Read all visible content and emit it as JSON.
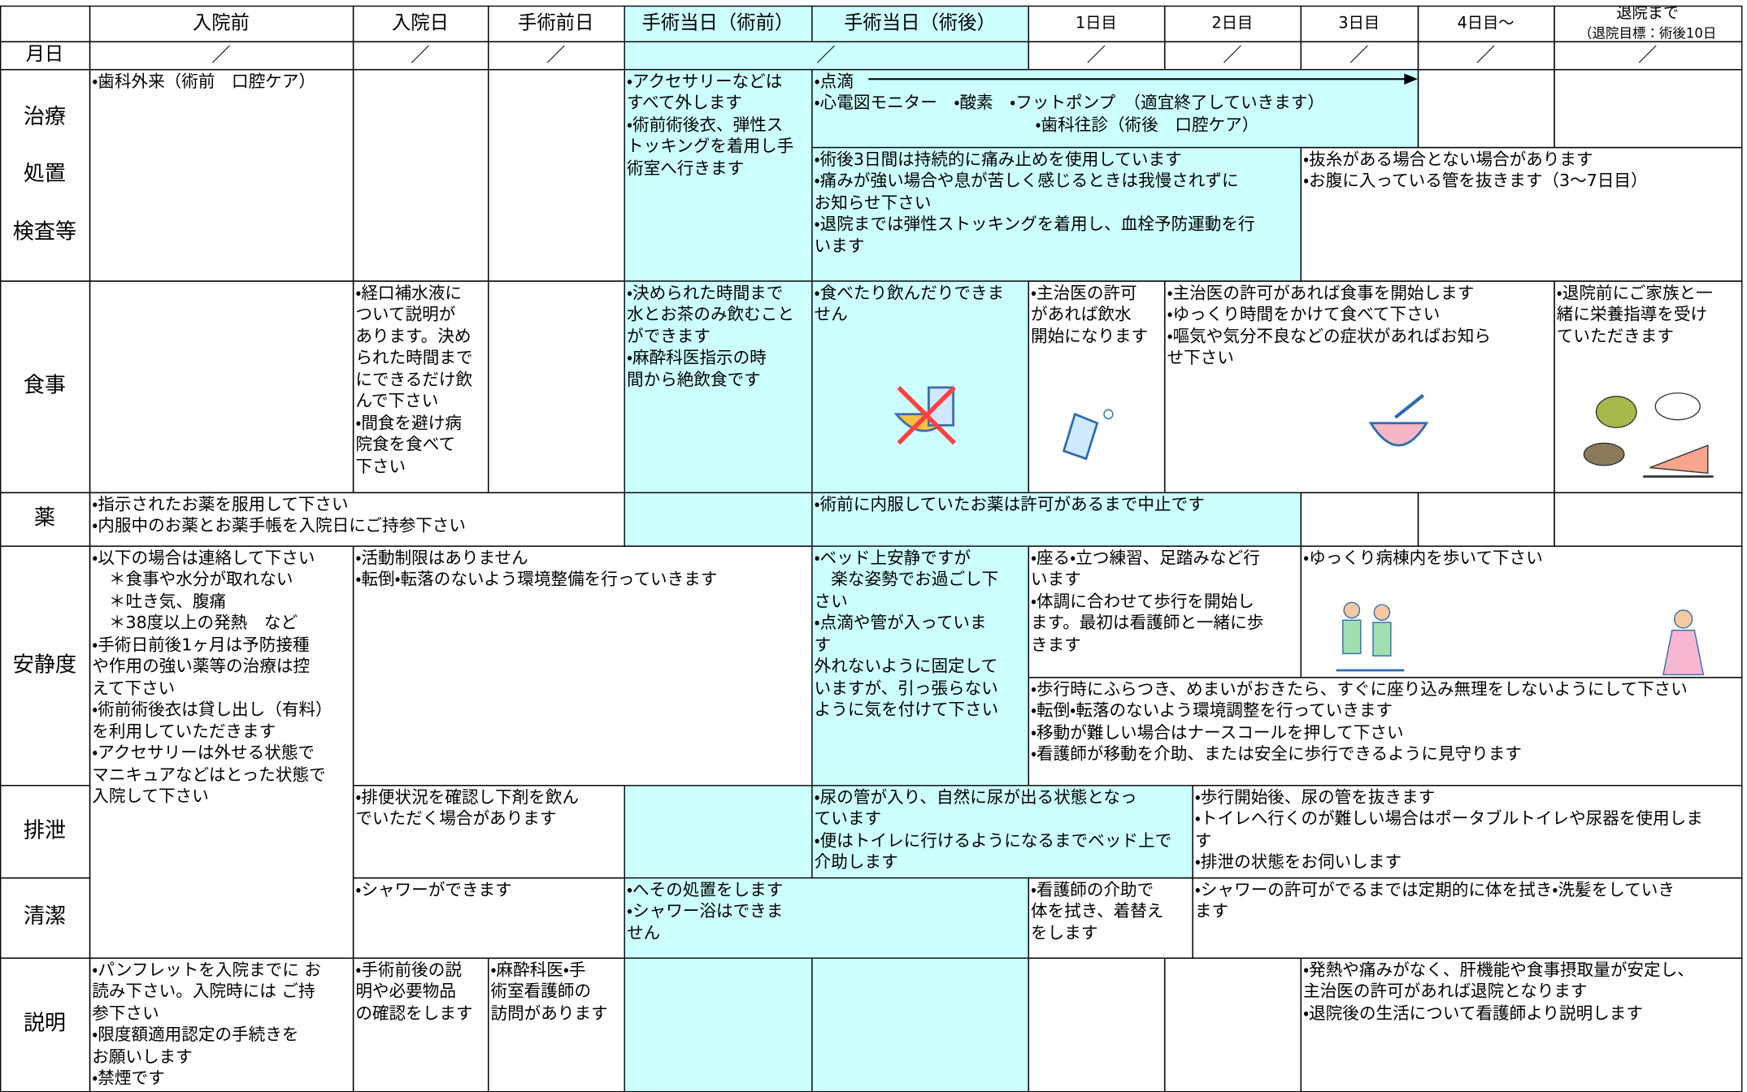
{
  "header": {
    "columns": [
      "入院前",
      "入院日",
      "手術前日",
      "手術当日（術前）",
      "手術当日（術後）",
      "1日目",
      "2日目",
      "3日目",
      "4日目〜",
      "退院まで"
    ],
    "discharge_target": "（退院目標：術後10日"
  },
  "month_day": {
    "label": "月日",
    "marks": [
      "／",
      "／",
      "／",
      "／",
      "／",
      "／",
      "／",
      "／",
      "／"
    ]
  },
  "rows": [
    {
      "label": [
        "治療",
        "処置",
        "検査等"
      ],
      "cells": [
        "・歯科外来（術前　口腔ケア）",
        "・アクセサリーなどは\nすべて外します\n・術前術後衣、弾性ス\nトッキングを着用し手\n術室へ行きます",
        [
          "・点滴",
          "・心電図モニター　・酸素　・フットポンプ　（適宜終了していきます）",
          "・歯科往診（術後　口腔ケア）"
        ],
        "・術後3日間は持続的に痛み止めを使用しています\n・痛みが強い場合や息が苦しく感じるときは我慢されずに\nお知らせ下さい\n・退院までは弾性ストッキングを着用し、血栓予防運動を行\nいます",
        "・抜糸がある場合とない場合があります\n・お腹に入っている管を抜きます（3〜7日目）"
      ]
    },
    {
      "label": [
        "食事"
      ],
      "cells": [
        "・経口補水液に\nついて説明が\nあります。決め\nられた時間まで\nにできるだけ飲\nんで下さい\n・間食を避け病\n院食を食べて\n下さい",
        "・決められた時間まで\n水とお茶のみ飲むこと\nができます\n・麻酔科医指示の時\n間から絶飲食です",
        "・食べたり飲んだりできま\nせん",
        "・主治医の許可\nがあれば飲水\n開始になります",
        "・主治医の許可があれば食事を開始します\n・ゆっくり時間をかけて食べて下さい\n・嘔気や気分不良などの症状があればお知ら\nせ下さい",
        "・退院前にご家族と一\n緒に栄養指導を受け\nていただきます"
      ]
    },
    {
      "label": [
        "薬"
      ],
      "cells": [
        "・指示されたお薬を服用して下さい\n・内服中のお薬とお薬手帳を入院日にご持参下さい",
        "・術前に内服していたお薬は許可があるまで中止です"
      ]
    },
    {
      "label": [
        "安静度"
      ],
      "cells": [
        "・以下の場合は連絡して下さい\n　＊食事や水分が取れない\n　＊吐き気、腹痛\n　＊38度以上の発熱　など\n・手術日前後1ヶ月は予防接種\nや作用の強い薬等の治療は控\nえて下さい\n・術前術後衣は貸し出し（有料）\nを利用していただきます\n・アクセサリーは外せる状態で\nマニキュアなどはとった状態で\n入院して下さい",
        "・活動制限はありません\n・転倒・転落のないよう環境整備を行っていきます",
        "・ベッド上安静ですが\n　楽な姿勢でお過ごし下\nさい\n・点滴や管が入っていま\nす\n外れないように固定して\nいますが、引っ張らない\nように気を付けて下さい",
        "・座る・立つ練習、足踏みなど行\nいます\n・体調に合わせて歩行を開始し\nます。最初は看護師と一緒に歩\nきます",
        "・ゆっくり病棟内を歩いて下さい",
        "・歩行時にふらつき、めまいがおきたら、すぐに座り込み無理をしないようにして下さい\n・転倒・転落のないよう環境調整を行っていきます\n・移動が難しい場合はナースコールを押して下さい\n・看護師が移動を介助、または安全に歩行できるように見守ります"
      ]
    },
    {
      "label": [
        "排泄"
      ],
      "cells": [
        "・排便状況を確認し下剤を飲ん\nでいただく場合があります",
        "・尿の管が入り、自然に尿が出る状態となっ\nています\n・便はトイレに行けるようになるまでベッド上で\n介助します",
        "・歩行開始後、尿の管を抜きます\n・トイレへ行くのが難しい場合はポータブルトイレや尿器を使用しま\nす\n・排泄の状態をお伺いします"
      ]
    },
    {
      "label": [
        "清潔"
      ],
      "cells": [
        "・シャワーができます",
        "・へその処置をします\n・シャワー浴はできま\nせん",
        "・看護師の介助で\n体を拭き、着替え\nをします",
        "・シャワーの許可がでるまでは定期的に体を拭き・洗髪をしていき\nます"
      ]
    },
    {
      "label": [
        "説明"
      ],
      "cells": [
        "・パンフレットを入院までに お\n読み下さい。入院時には ご持\n参下さい\n・限度額適用認定の手続きを\nお願いします\n・禁煙です",
        "・手術前後の説\n明や必要物品\nの確認をします",
        "・麻酔科医・手\n術室看護師の\n訪問があります",
        "・発熱や痛みがなく、肝機能や食事摂取量が安定し、\n主治医の許可があれば退院となります\n・退院後の生活について看護師より説明します"
      ]
    }
  ]
}
